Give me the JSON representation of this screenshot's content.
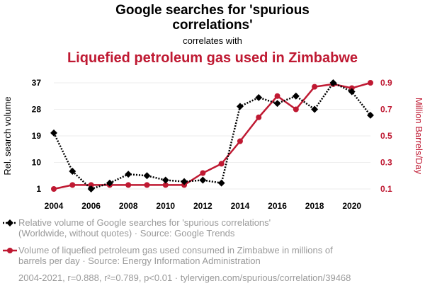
{
  "header": {
    "title_line1": "Google searches for 'spurious",
    "title_line2": "correlations'",
    "subtitle": "correlates with",
    "title2": "Liquefied petroleum gas used in Zimbabwe"
  },
  "colors": {
    "series1": "#000000",
    "series2": "#bf1932",
    "grid": "#eeeeee",
    "muted": "#9a9a9a"
  },
  "chart_data": {
    "type": "line",
    "x": [
      2004,
      2005,
      2006,
      2007,
      2008,
      2009,
      2010,
      2011,
      2012,
      2013,
      2014,
      2015,
      2016,
      2017,
      2018,
      2019,
      2020,
      2021
    ],
    "xlim": [
      2004,
      2021
    ],
    "xticks": [
      "2004",
      "2006",
      "2008",
      "2010",
      "2012",
      "2014",
      "2016",
      "2018",
      "2020"
    ],
    "grid": true,
    "legend_position": "bottom",
    "series": [
      {
        "name": "Relative volume of Google searches for 'spurious correlations' (Worldwide, without quotes) · Source: Google Trends",
        "axis": "left",
        "style": "dotted-diamond",
        "values": [
          20,
          7,
          1,
          3,
          6,
          5.5,
          4,
          3.5,
          4,
          3,
          29,
          32,
          30,
          32.5,
          28,
          37,
          34,
          26
        ]
      },
      {
        "name": "Volume of liquefied petroleum gas used consumed in Zimbabwe in millions of barrels per day · Source: Energy Information Administration",
        "axis": "right",
        "style": "solid-circle",
        "values": [
          0.1,
          0.13,
          0.13,
          0.13,
          0.13,
          0.13,
          0.13,
          0.13,
          0.22,
          0.29,
          0.46,
          0.64,
          0.8,
          0.7,
          0.87,
          0.89,
          0.86,
          0.9
        ]
      }
    ],
    "y_left": {
      "label": "Rel. search volume",
      "ticks": [
        "37",
        "28",
        "19",
        "10",
        "1"
      ],
      "lim": [
        1,
        37
      ]
    },
    "y_right": {
      "label": "Million Barrels/Day",
      "ticks": [
        "0.9",
        "0.7",
        "0.5",
        "0.3",
        "0.1"
      ],
      "lim": [
        0.1,
        0.9
      ]
    }
  },
  "legend": {
    "item1_line1": "Relative volume of Google searches for 'spurious correlations'",
    "item1_line2": "(Worldwide, without quotes) · Source: Google Trends",
    "item2_line1": "Volume of liquefied petroleum gas used consumed in Zimbabwe in millions of",
    "item2_line2": "barrels per day · Source: Energy Information Administration"
  },
  "footer": {
    "text": "2004-2021, r=0.888, r²=0.789, p<0.01 · tylervigen.com/spurious/correlation/39468"
  }
}
